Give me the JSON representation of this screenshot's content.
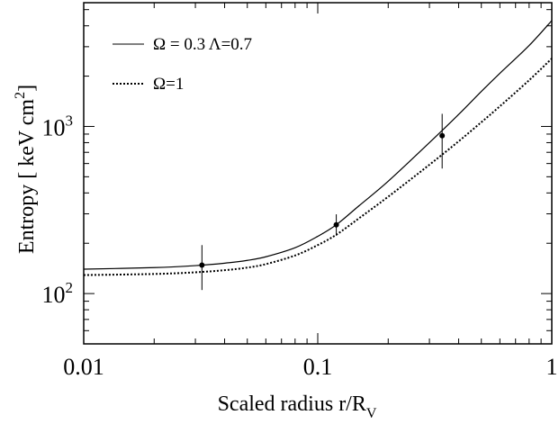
{
  "chart_data": {
    "type": "line",
    "xscale": "log",
    "yscale": "log",
    "xlim": [
      0.01,
      1
    ],
    "ylim": [
      50,
      5500
    ],
    "xlabel": "Scaled radius r/R",
    "xlabel_sub": "V",
    "ylabel": "Entropy  [ keV cm",
    "ylabel_sup": "2",
    "ylabel_end": "]",
    "x_ticks": [
      {
        "value": 0.01,
        "label": "0.01"
      },
      {
        "value": 0.1,
        "label": "0.1"
      },
      {
        "value": 1,
        "label": "1"
      }
    ],
    "y_ticks": [
      {
        "value": 100,
        "base": "10",
        "exp": "2"
      },
      {
        "value": 1000,
        "base": "10",
        "exp": "3"
      }
    ],
    "legend_position": "top-left",
    "series": [
      {
        "name": "Ω = 0.3  Λ=0.7",
        "style": "solid",
        "color": "#000000",
        "x": [
          0.01,
          0.02,
          0.03,
          0.04,
          0.05,
          0.06,
          0.08,
          0.1,
          0.12,
          0.15,
          0.2,
          0.3,
          0.4,
          0.5,
          0.6,
          0.8,
          1.0
        ],
        "y": [
          140,
          143,
          147,
          152,
          158,
          166,
          188,
          220,
          258,
          335,
          470,
          800,
          1180,
          1620,
          2080,
          3050,
          4300
        ]
      },
      {
        "name": "Ω=1",
        "style": "dotted",
        "color": "#000000",
        "x": [
          0.01,
          0.02,
          0.03,
          0.04,
          0.05,
          0.06,
          0.08,
          0.1,
          0.12,
          0.15,
          0.2,
          0.3,
          0.4,
          0.5,
          0.6,
          0.8,
          1.0
        ],
        "y": [
          129,
          131,
          134,
          138,
          143,
          150,
          169,
          195,
          225,
          282,
          380,
          590,
          815,
          1060,
          1320,
          1890,
          2550
        ]
      }
    ],
    "points": [
      {
        "x": 0.032,
        "y": 148,
        "y_low": 105,
        "y_high": 195
      },
      {
        "x": 0.12,
        "y": 258,
        "y_low": 222,
        "y_high": 298
      },
      {
        "x": 0.34,
        "y": 880,
        "y_low": 560,
        "y_high": 1190
      }
    ]
  }
}
